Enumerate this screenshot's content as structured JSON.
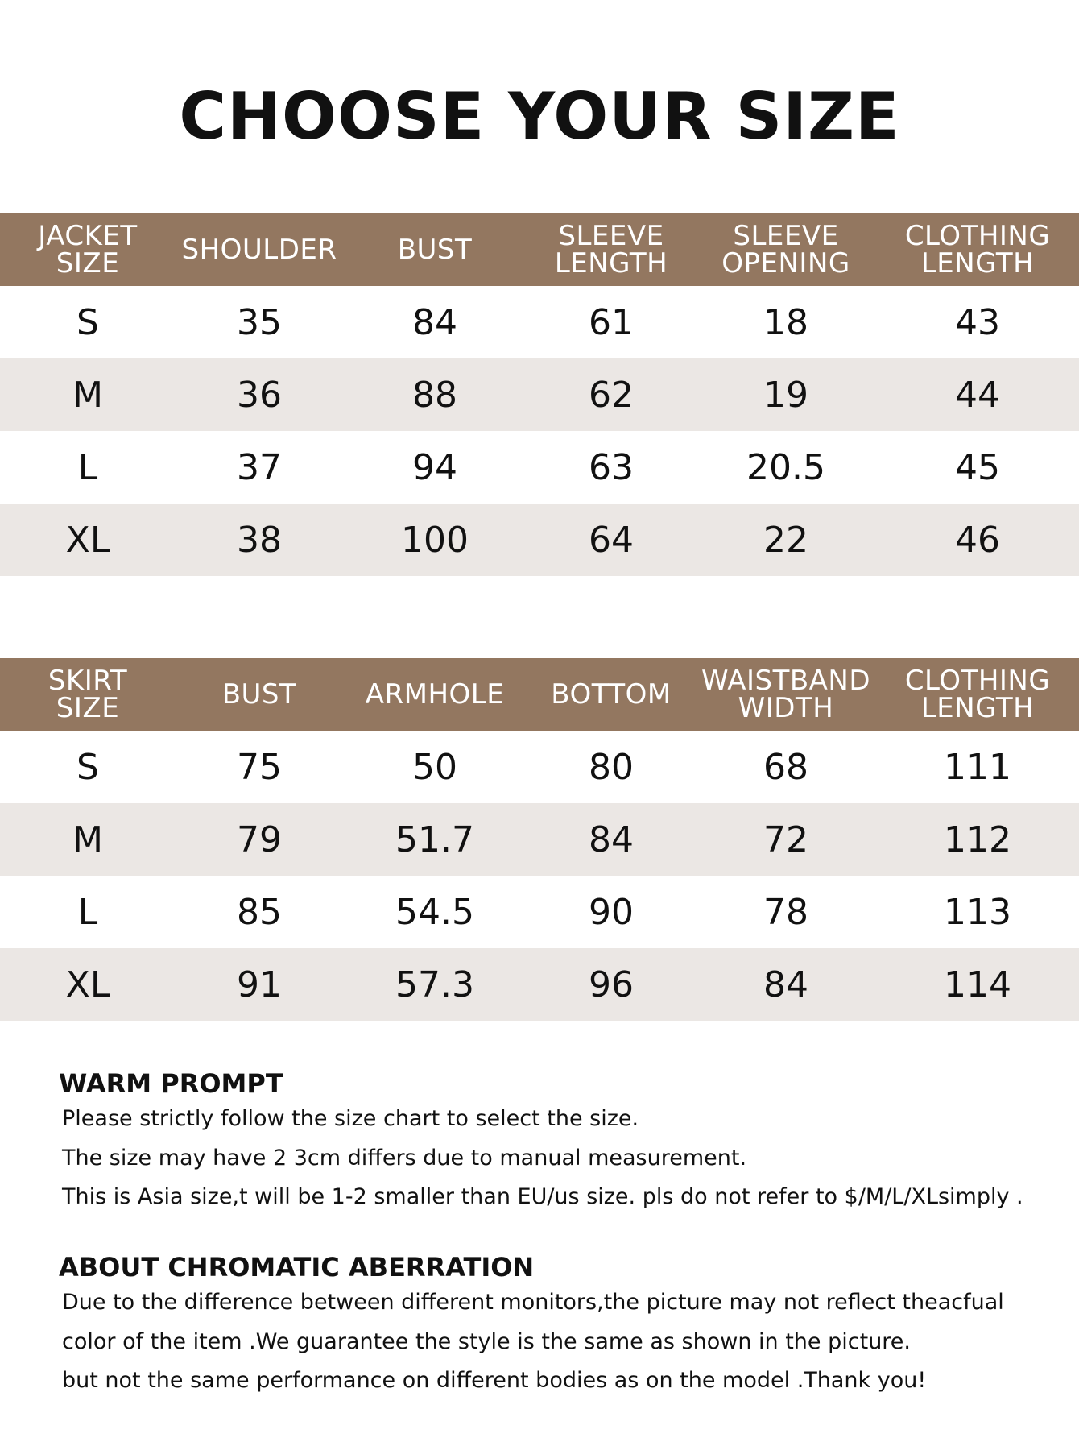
{
  "title": "CHOOSE YOUR SIZE",
  "jacket_table": {
    "headers": [
      [
        "JACKET",
        "SIZE"
      ],
      [
        "SHOULDER"
      ],
      [
        "BUST"
      ],
      [
        "SLEEVE",
        "LENGTH"
      ],
      [
        "SLEEVE",
        "OPENING"
      ],
      [
        "CLOTHING",
        "LENGTH"
      ]
    ],
    "rows": [
      [
        "S",
        "35",
        "84",
        "61",
        "18",
        "43"
      ],
      [
        "M",
        "36",
        "88",
        "62",
        "19",
        "44"
      ],
      [
        "L",
        "37",
        "94",
        "63",
        "20.5",
        "45"
      ],
      [
        "XL",
        "38",
        "100",
        "64",
        "22",
        "46"
      ]
    ]
  },
  "skirt_table": {
    "headers": [
      [
        "SKIRT",
        "SIZE"
      ],
      [
        "BUST"
      ],
      [
        "ARMHOLE"
      ],
      [
        "BOTTOM"
      ],
      [
        "WAISTBAND",
        "WIDTH"
      ],
      [
        "CLOTHING",
        "LENGTH"
      ]
    ],
    "rows": [
      [
        "S",
        "75",
        "50",
        "80",
        "68",
        "111"
      ],
      [
        "M",
        "79",
        "51.7",
        "84",
        "72",
        "112"
      ],
      [
        "L",
        "85",
        "54.5",
        "90",
        "78",
        "113"
      ],
      [
        "XL",
        "91",
        "57.3",
        "96",
        "84",
        "114"
      ]
    ]
  },
  "warm_prompt": {
    "heading": "WARM PROMPT",
    "lines": [
      "Please strictly follow the size chart to select the size.",
      "The size may have 2 3cm differs due to manual measurement.",
      "This is Asia size,t will be 1-2 smaller than EU/us size. pls do not refer to $/M/L/XLsimply ."
    ]
  },
  "chromatic_aberration": {
    "heading": "ABOUT CHROMATIC ABERRATION",
    "lines": [
      "Due to the difference between different monitors,the picture may not reflect theacfual",
      "color of the item .We guarantee the style is the same as shown in the picture.",
      "but not the same performance on different bodies as on the model .Thank you!"
    ]
  },
  "colors": {
    "header_bg": "#937760",
    "header_text": "#ffffff",
    "alt_row_bg": "#ebe7e4",
    "text": "#111111"
  }
}
